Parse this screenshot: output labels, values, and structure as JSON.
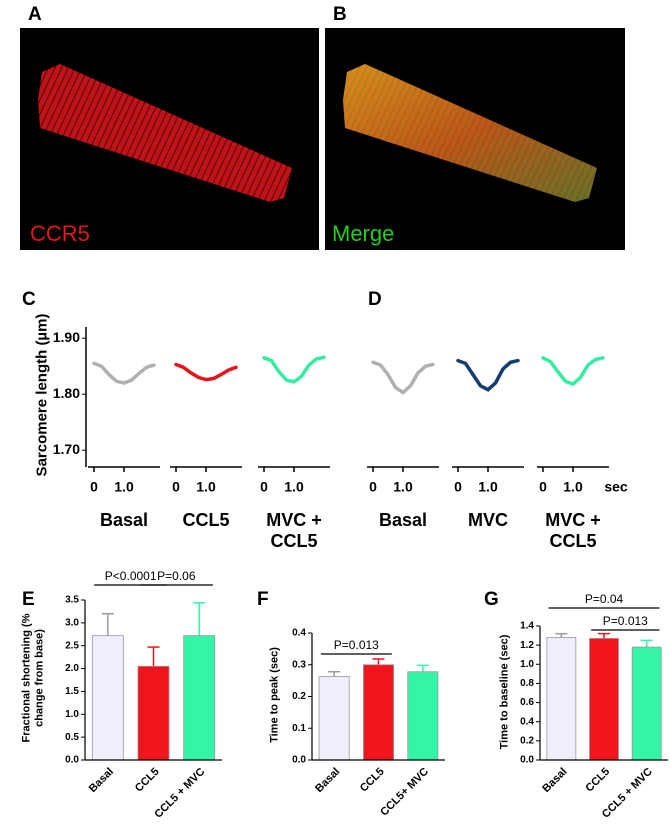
{
  "figure": {
    "panel_labels": [
      "A",
      "B",
      "C",
      "D",
      "E",
      "F",
      "G"
    ],
    "image_labels": [
      "CCR5",
      "Merge"
    ]
  },
  "chart_data": [
    {
      "type": "trace",
      "ylabel": "Sarcomere length (µm)",
      "ylim": [
        1.67,
        1.92
      ],
      "yticks": [
        {
          "value": 1.9,
          "label": "1.90"
        },
        {
          "value": 1.8,
          "label": "1.80"
        },
        {
          "value": 1.7,
          "label": "1.70"
        }
      ],
      "xlim": [
        -0.2,
        2.2
      ],
      "xticks": [
        0,
        {
          "value": 1,
          "label": "1.0"
        }
      ],
      "x": [
        0,
        0.25,
        0.5,
        0.75,
        1,
        1.25,
        1.5,
        1.75,
        2
      ],
      "series": [
        {
          "name": "Basal",
          "color": "#b0b0b0",
          "values": [
            1.855,
            1.85,
            1.835,
            1.823,
            1.82,
            1.825,
            1.837,
            1.848,
            1.852
          ]
        },
        {
          "name": "CCL5",
          "color": "#e8141c",
          "values": [
            1.853,
            1.848,
            1.838,
            1.83,
            1.826,
            1.828,
            1.835,
            1.843,
            1.848
          ]
        },
        {
          "name": "MVC + CCL5",
          "color": "#33eea0",
          "values": [
            1.865,
            1.86,
            1.84,
            1.825,
            1.822,
            1.832,
            1.852,
            1.863,
            1.866
          ]
        }
      ]
    },
    {
      "type": "trace",
      "xlabel": "sec",
      "ylim": [
        1.67,
        1.92
      ],
      "xlim": [
        -0.2,
        2.2
      ],
      "xticks": [
        0,
        {
          "value": 1,
          "label": "1.0"
        }
      ],
      "x": [
        0,
        0.25,
        0.5,
        0.75,
        1,
        1.25,
        1.5,
        1.75,
        2
      ],
      "series": [
        {
          "name": "Basal",
          "color": "#b0b0b0",
          "values": [
            1.857,
            1.852,
            1.835,
            1.812,
            1.803,
            1.815,
            1.838,
            1.85,
            1.853
          ]
        },
        {
          "name": "MVC",
          "color": "#143c6e",
          "values": [
            1.86,
            1.855,
            1.835,
            1.815,
            1.808,
            1.82,
            1.845,
            1.857,
            1.86
          ]
        },
        {
          "name": "MVC + CCL5",
          "color": "#33eea0",
          "values": [
            1.865,
            1.858,
            1.84,
            1.823,
            1.818,
            1.83,
            1.852,
            1.862,
            1.865
          ]
        }
      ]
    },
    {
      "type": "bar",
      "ylabel": "Fractional shortening (% change from base)",
      "categories": [
        "Basal",
        "CCL5",
        "CCL5 + MVC"
      ],
      "values": [
        2.72,
        2.05,
        2.72
      ],
      "errors": [
        0.48,
        0.42,
        0.72
      ],
      "colors": [
        "#eeeefc",
        "#f0141c",
        "#33f5a5"
      ],
      "ylim": [
        0,
        3.5
      ],
      "yticks": [
        {
          "value": 0,
          "label": "0.0"
        },
        {
          "value": 0.5,
          "label": "0.5"
        },
        {
          "value": 1,
          "label": "1.0"
        },
        {
          "value": 1.5,
          "label": "1.5"
        },
        {
          "value": 2,
          "label": "2.0"
        },
        {
          "value": 2.5,
          "label": "2.5"
        },
        {
          "value": 3,
          "label": "3.0"
        },
        {
          "value": 3.5,
          "label": "3.5"
        }
      ],
      "annotations": [
        "P<0.0001",
        "P=0.06"
      ]
    },
    {
      "type": "bar",
      "ylabel": "Time to peak (sec)",
      "categories": [
        "Basal",
        "CCL5",
        "CCL5+ MVC"
      ],
      "values": [
        0.263,
        0.3,
        0.278
      ],
      "errors": [
        0.015,
        0.018,
        0.02
      ],
      "colors": [
        "#eeeefc",
        "#f0141c",
        "#33f5a5"
      ],
      "ylim": [
        0,
        0.4
      ],
      "yticks": [
        {
          "value": 0,
          "label": "0.0"
        },
        0.1,
        0.2,
        0.3,
        0.4
      ],
      "annotations": [
        "P=0.013"
      ]
    },
    {
      "type": "bar",
      "ylabel": "Time to baseline (sec)",
      "categories": [
        "Basal",
        "CCL5",
        "CCL5 + MVC"
      ],
      "values": [
        1.28,
        1.27,
        1.18
      ],
      "errors": [
        0.04,
        0.05,
        0.07
      ],
      "colors": [
        "#eeeefc",
        "#f0141c",
        "#33f5a5"
      ],
      "ylim": [
        0,
        1.4
      ],
      "yticks": [
        {
          "value": 0,
          "label": "0.0"
        },
        0.2,
        0.4,
        0.6,
        0.8,
        {
          "value": 1,
          "label": "1.0"
        },
        1.2,
        1.4
      ],
      "annotations": [
        "P=0.04",
        "P=0.013"
      ]
    }
  ]
}
